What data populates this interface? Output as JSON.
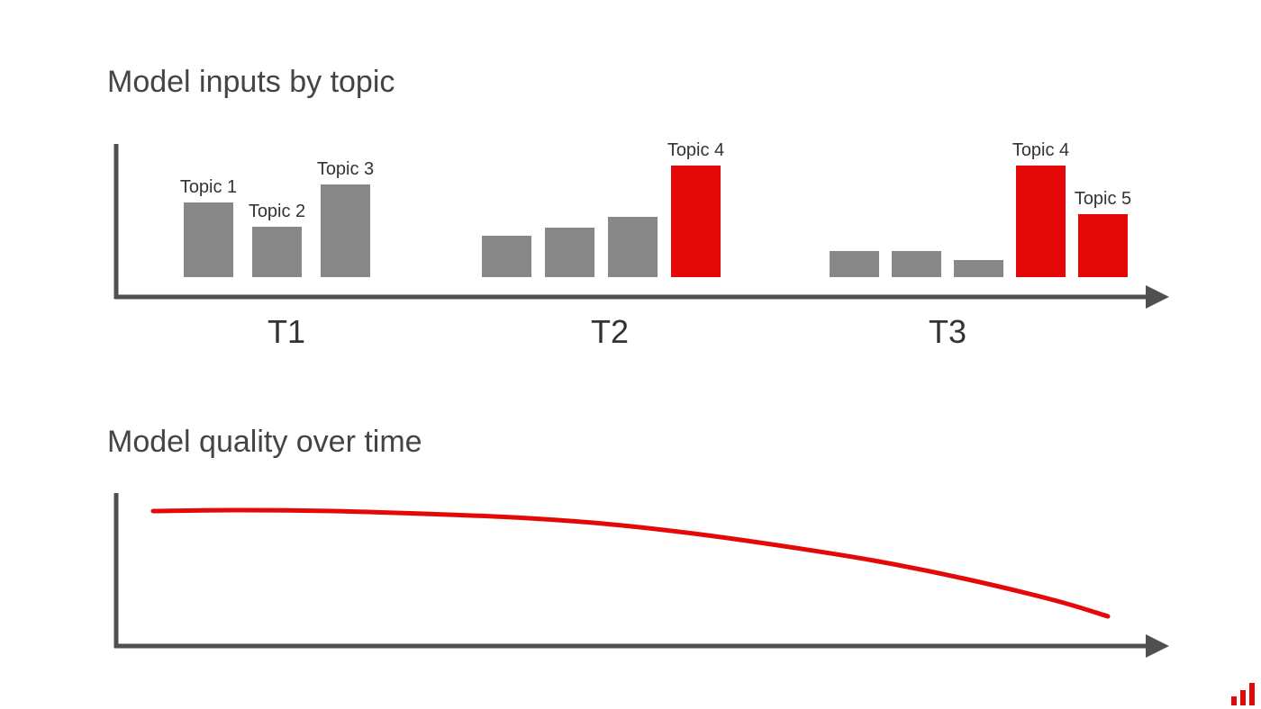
{
  "colors": {
    "gray": "#878787",
    "red": "#e50808",
    "axis": "#505050",
    "text": "#333333"
  },
  "chart_data": [
    {
      "type": "bar",
      "title": "Model inputs by topic",
      "xlabel": "",
      "ylabel": "",
      "ylim": [
        0,
        125
      ],
      "grid": false,
      "categories": [
        "T1",
        "T2",
        "T3"
      ],
      "groups": [
        {
          "name": "T1",
          "bars": [
            {
              "label": "Topic 1",
              "value": 83,
              "color": "gray"
            },
            {
              "label": "Topic 2",
              "value": 56,
              "color": "gray"
            },
            {
              "label": "Topic 3",
              "value": 103,
              "color": "gray"
            }
          ]
        },
        {
          "name": "T2",
          "bars": [
            {
              "label": "",
              "value": 46,
              "color": "gray"
            },
            {
              "label": "",
              "value": 55,
              "color": "gray"
            },
            {
              "label": "",
              "value": 67,
              "color": "gray"
            },
            {
              "label": "Topic 4",
              "value": 124,
              "color": "red"
            }
          ]
        },
        {
          "name": "T3",
          "bars": [
            {
              "label": "",
              "value": 29,
              "color": "gray"
            },
            {
              "label": "",
              "value": 29,
              "color": "gray"
            },
            {
              "label": "",
              "value": 19,
              "color": "gray"
            },
            {
              "label": "Topic 4",
              "value": 124,
              "color": "red"
            },
            {
              "label": "Topic 5",
              "value": 70,
              "color": "red"
            }
          ]
        }
      ]
    },
    {
      "type": "line",
      "title": "Model quality over time",
      "xlabel": "",
      "ylabel": "",
      "ylim": [
        0,
        160
      ],
      "xlim": [
        0,
        1170
      ],
      "grid": false,
      "series": [
        {
          "color": "red",
          "x": [
            0,
            100,
            200,
            300,
            400,
            500,
            600,
            700,
            800,
            900,
            1000,
            1060
          ],
          "y": [
            150,
            151,
            150,
            147,
            143,
            136,
            125,
            111,
            95,
            75,
            51,
            33
          ]
        }
      ]
    }
  ]
}
